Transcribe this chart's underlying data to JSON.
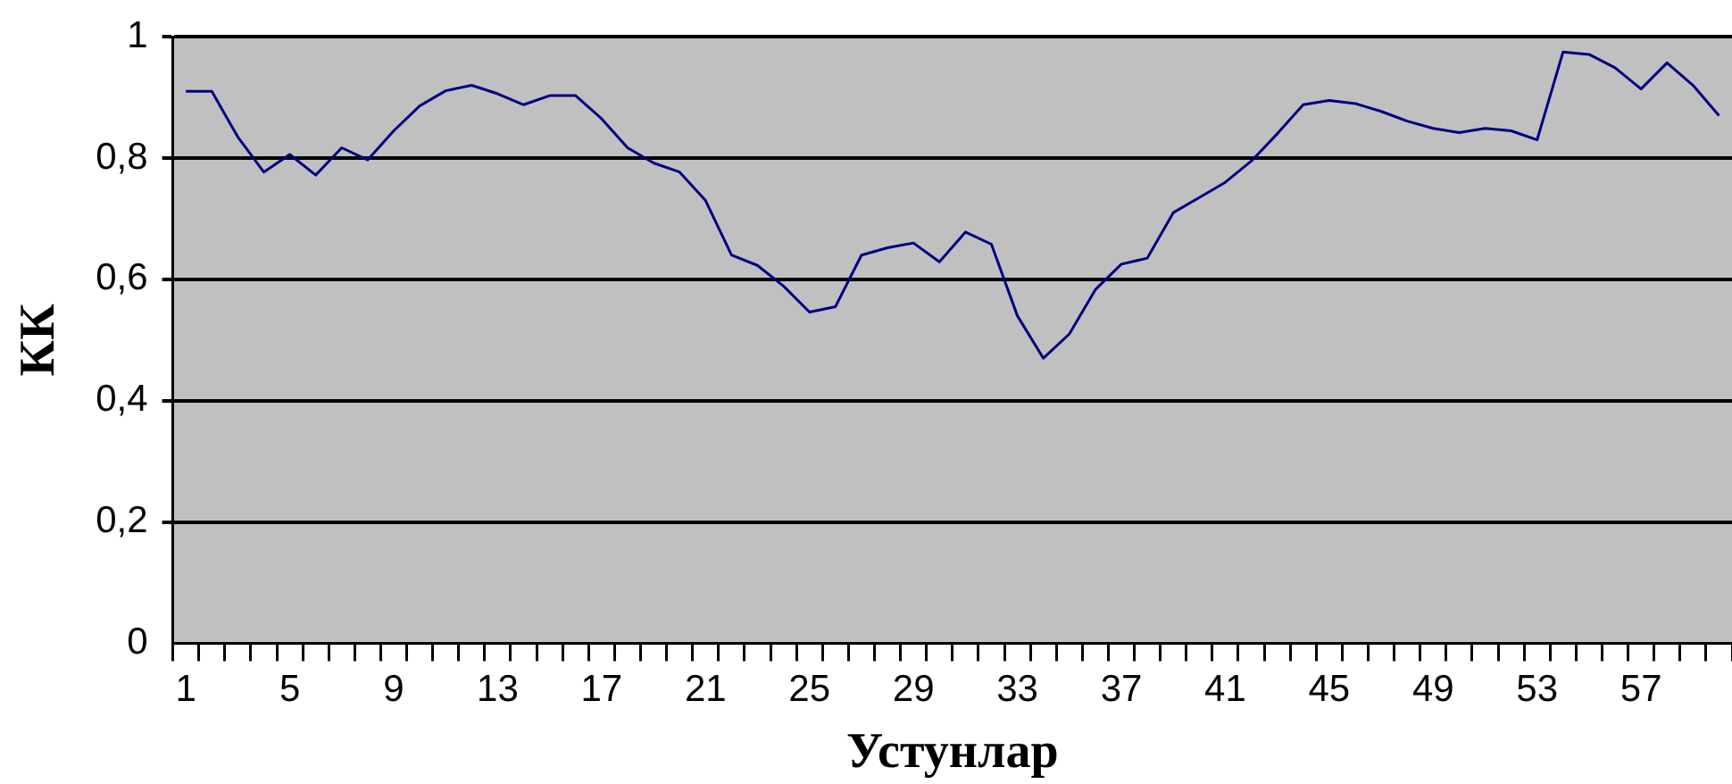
{
  "chart_data": {
    "type": "line",
    "xlabel": "Устунлар",
    "ylabel": "КК",
    "categories": [
      "1",
      null,
      null,
      null,
      "5",
      null,
      null,
      null,
      "9",
      null,
      null,
      null,
      "13",
      null,
      null,
      null,
      "17",
      null,
      null,
      null,
      "21",
      null,
      null,
      null,
      "25",
      null,
      null,
      null,
      "29",
      null,
      null,
      null,
      "33",
      null,
      null,
      null,
      "37",
      null,
      null,
      null,
      "41",
      null,
      null,
      null,
      "45",
      null,
      null,
      null,
      "49",
      null,
      null,
      null,
      "53",
      null,
      null,
      null,
      "57",
      null,
      null,
      null
    ],
    "series": [
      {
        "color": "#000080",
        "values": [
          0.91,
          0.91,
          0.835,
          0.777,
          0.806,
          0.772,
          0.817,
          0.797,
          0.845,
          0.886,
          0.911,
          0.92,
          0.906,
          0.888,
          0.903,
          0.903,
          0.865,
          0.817,
          0.792,
          0.777,
          0.73,
          0.64,
          0.623,
          0.589,
          0.546,
          0.555,
          0.64,
          0.652,
          0.66,
          0.629,
          0.678,
          0.658,
          0.54,
          0.47,
          0.51,
          0.583,
          0.625,
          0.635,
          0.71,
          0.735,
          0.76,
          0.795,
          0.84,
          0.888,
          0.895,
          0.89,
          0.877,
          0.861,
          0.849,
          0.842,
          0.849,
          0.845,
          0.83,
          0.975,
          0.971,
          0.949,
          0.914,
          0.957,
          0.92,
          0.87
        ]
      }
    ],
    "ylim": [
      0,
      1
    ],
    "yticks": [
      0,
      {
        "value": 0.2,
        "label": "0,2"
      },
      {
        "value": 0.4,
        "label": "0,4"
      },
      {
        "value": 0.6,
        "label": "0,6"
      },
      {
        "value": 0.8,
        "label": "0,8"
      },
      1
    ],
    "grid": "y",
    "legend": false,
    "marker": "none",
    "line_style": "solid"
  }
}
